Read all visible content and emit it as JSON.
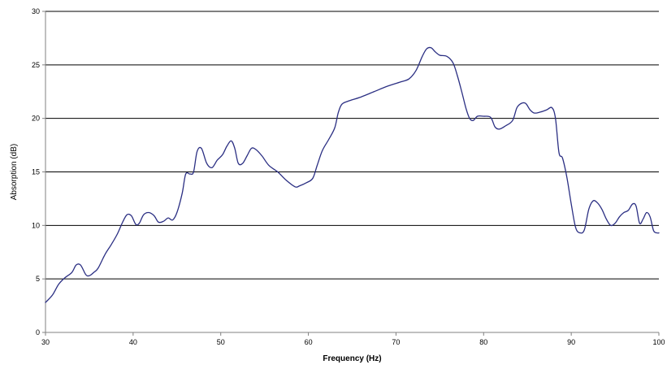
{
  "chart_data": {
    "type": "line",
    "title": "",
    "xlabel": "Frequency (Hz)",
    "ylabel": "Absorption (dB)",
    "xlim": [
      30,
      100
    ],
    "ylim": [
      0,
      30
    ],
    "x_ticks": [
      30,
      40,
      50,
      60,
      70,
      80,
      90,
      100
    ],
    "y_ticks": [
      0,
      5,
      10,
      15,
      20,
      25,
      30
    ],
    "x_tick_labels": [
      "30",
      "40",
      "50",
      "60",
      "70",
      "80",
      "90",
      "100"
    ],
    "y_tick_labels": [
      "0",
      "5",
      "10",
      "15",
      "20",
      "25",
      "30"
    ],
    "grid": "horizontal",
    "legend": "none",
    "line_color": "#2b2f83",
    "grid_color": "#000000",
    "series": [
      {
        "x": [
          30,
          30.8,
          31.5,
          32.2,
          33.0,
          33.5,
          34.0,
          34.6,
          35.0,
          35.5,
          36.0,
          36.8,
          37.5,
          38.2,
          38.8,
          39.3,
          39.8,
          40.3,
          40.7,
          41.2,
          41.8,
          42.4,
          42.9,
          43.5,
          44.0,
          44.5,
          45.0,
          45.6,
          46.0,
          46.5,
          46.9,
          47.3,
          47.8,
          48.4,
          49.0,
          49.6,
          50.2,
          50.7,
          51.2,
          51.6,
          52.0,
          52.5,
          53.0,
          53.5,
          54.0,
          54.7,
          55.5,
          56.5,
          57.5,
          58.5,
          59.0,
          59.8,
          60.5,
          61.0,
          61.6,
          62.3,
          63.0,
          63.4,
          63.8,
          64.5,
          66.0,
          67.5,
          69.0,
          70.5,
          71.5,
          72.3,
          73.0,
          73.5,
          74.0,
          74.5,
          75.0,
          75.8,
          76.5,
          77.0,
          77.5,
          78.0,
          78.4,
          78.8,
          79.3,
          80.0,
          80.8,
          81.3,
          81.8,
          82.5,
          83.3,
          83.8,
          84.3,
          84.8,
          85.3,
          85.8,
          86.5,
          87.2,
          87.8,
          88.2,
          88.6,
          89.0,
          89.5,
          90.0,
          90.5,
          91.0,
          91.5,
          92.0,
          92.5,
          93.0,
          93.5,
          94.0,
          94.5,
          95.0,
          95.5,
          96.0,
          96.5,
          97.0,
          97.4,
          97.8,
          98.2,
          98.6,
          99.0,
          99.4,
          99.8,
          100
        ],
        "y": [
          2.8,
          3.5,
          4.5,
          5.1,
          5.6,
          6.3,
          6.3,
          5.4,
          5.3,
          5.6,
          6.0,
          7.3,
          8.2,
          9.2,
          10.3,
          11.0,
          10.9,
          10.1,
          10.2,
          11.0,
          11.2,
          10.9,
          10.3,
          10.4,
          10.7,
          10.5,
          11.2,
          13.0,
          14.8,
          14.8,
          15.0,
          16.9,
          17.2,
          15.8,
          15.4,
          16.1,
          16.6,
          17.4,
          17.9,
          17.2,
          15.8,
          15.8,
          16.5,
          17.2,
          17.1,
          16.5,
          15.6,
          15.0,
          14.2,
          13.6,
          13.7,
          14.0,
          14.4,
          15.6,
          17.0,
          18.0,
          19.1,
          20.5,
          21.3,
          21.6,
          22.0,
          22.5,
          23.0,
          23.4,
          23.7,
          24.5,
          25.8,
          26.5,
          26.6,
          26.2,
          25.9,
          25.8,
          25.2,
          24.0,
          22.5,
          20.9,
          20.0,
          19.8,
          20.2,
          20.2,
          20.1,
          19.2,
          19.0,
          19.3,
          19.8,
          21.0,
          21.4,
          21.4,
          20.8,
          20.5,
          20.6,
          20.8,
          21.0,
          20.0,
          16.8,
          16.3,
          14.5,
          12.0,
          9.8,
          9.3,
          9.6,
          11.5,
          12.3,
          12.1,
          11.5,
          10.6,
          10.0,
          10.2,
          10.8,
          11.2,
          11.4,
          12.0,
          11.8,
          10.2,
          10.6,
          11.2,
          10.8,
          9.5,
          9.3,
          9.3
        ]
      }
    ]
  }
}
